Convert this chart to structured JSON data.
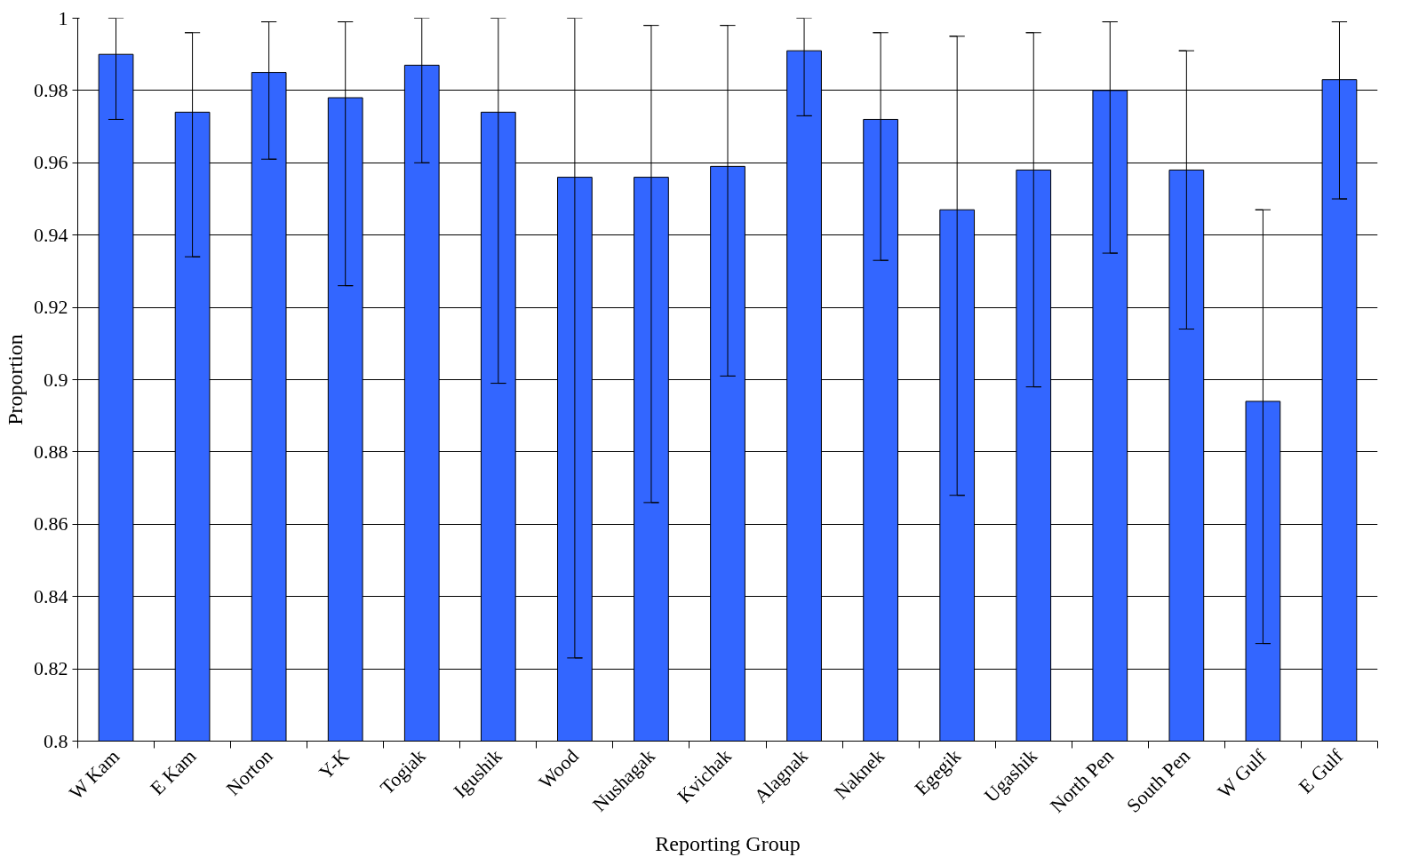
{
  "chart_data": {
    "type": "bar",
    "xlabel": "Reporting Group",
    "ylabel": "Proportion",
    "categories": [
      "W Kam",
      "E Kam",
      "Norton",
      "Y-K",
      "Togiak",
      "Igushik",
      "Wood",
      "Nushagak",
      "Kvichak",
      "Alagnak",
      "Naknek",
      "Egegik",
      "Ugashik",
      "North Pen",
      "South Pen",
      "W Gulf",
      "E Gulf"
    ],
    "values": [
      0.99,
      0.974,
      0.985,
      0.978,
      0.987,
      0.974,
      0.956,
      0.956,
      0.959,
      0.991,
      0.972,
      0.947,
      0.958,
      0.98,
      0.958,
      0.894,
      0.983
    ],
    "errors": [
      [
        0.972,
        1.0
      ],
      [
        0.934,
        0.996
      ],
      [
        0.961,
        0.999
      ],
      [
        0.926,
        0.999
      ],
      [
        0.96,
        1.0
      ],
      [
        0.899,
        1.0
      ],
      [
        0.823,
        1.0
      ],
      [
        0.866,
        0.998
      ],
      [
        0.901,
        0.998
      ],
      [
        0.973,
        1.0
      ],
      [
        0.933,
        0.996
      ],
      [
        0.868,
        0.995
      ],
      [
        0.898,
        0.996
      ],
      [
        0.935,
        0.999
      ],
      [
        0.914,
        0.991
      ],
      [
        0.827,
        0.947
      ],
      [
        0.95,
        0.999
      ]
    ],
    "color": "#3366ff",
    "ylim": [
      0.8,
      1
    ],
    "yticks": [
      0.8,
      0.82,
      0.84,
      0.86,
      0.88,
      0.9,
      0.92,
      0.94,
      0.96,
      0.98,
      1
    ],
    "grid": "y"
  }
}
